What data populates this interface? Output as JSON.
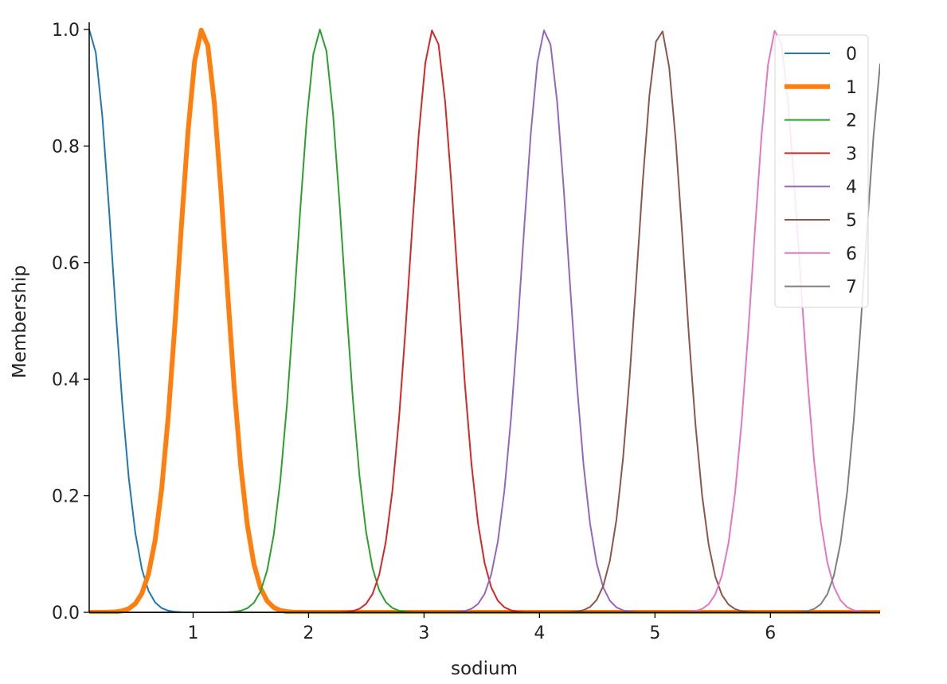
{
  "chart_data": {
    "type": "line",
    "title": "",
    "xlabel": "sodium",
    "ylabel": "Membership",
    "xlim": [
      0.1,
      6.95
    ],
    "ylim": [
      0,
      1.0
    ],
    "x_ticks": [
      "1",
      "2",
      "3",
      "4",
      "5",
      "6"
    ],
    "y_ticks": [
      "0.0",
      "0.2",
      "0.4",
      "0.6",
      "0.8",
      "1.0"
    ],
    "grid": false,
    "legend_placement": "top-right",
    "series": [
      {
        "name": "0",
        "color": "#1f77b4",
        "center": 0.1,
        "sigma": 0.2,
        "bold": false
      },
      {
        "name": "1",
        "color": "#ff7f0e",
        "center": 1.08,
        "sigma": 0.2,
        "bold": true
      },
      {
        "name": "2",
        "color": "#2ca02c",
        "center": 2.1,
        "sigma": 0.2,
        "bold": false
      },
      {
        "name": "3",
        "color": "#d62728",
        "center": 3.08,
        "sigma": 0.2,
        "bold": false
      },
      {
        "name": "4",
        "color": "#9467bd",
        "center": 4.05,
        "sigma": 0.2,
        "bold": false
      },
      {
        "name": "5",
        "color": "#8c564b",
        "center": 5.05,
        "sigma": 0.2,
        "bold": false
      },
      {
        "name": "6",
        "color": "#e377c2",
        "center": 6.05,
        "sigma": 0.2,
        "bold": false
      },
      {
        "name": "7",
        "color": "#7f7f7f",
        "center": 7.02,
        "sigma": 0.2,
        "bold": false
      }
    ]
  }
}
